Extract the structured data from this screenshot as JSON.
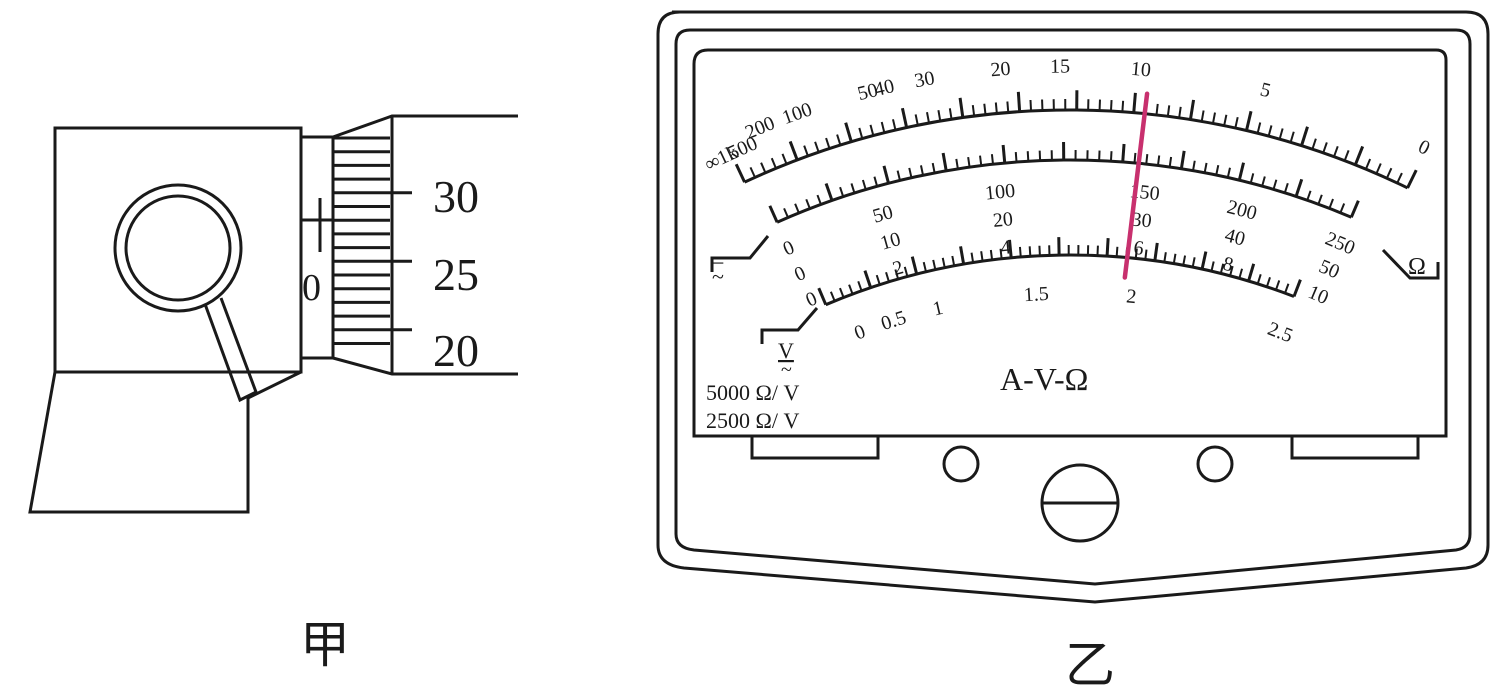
{
  "figure_labels": {
    "left": "甲",
    "right": "乙"
  },
  "micrometer": {
    "sleeve_label": "0",
    "thimble_labels": [
      "30",
      "25",
      "20"
    ]
  },
  "meter": {
    "title": "A-V-Ω",
    "ohm_unit": "Ω",
    "dc_symbol": "=",
    "ac_symbol": "~",
    "volt_unit": "V",
    "sensitivity": [
      "5000  Ω/ V",
      "2500  Ω/ V"
    ],
    "ohm_scale": [
      "∞",
      "1k",
      "500",
      "200",
      "100",
      "50",
      "40",
      "30",
      "20",
      "15",
      "10",
      "5",
      "0"
    ],
    "dc_scale_250": [
      "0",
      "50",
      "100",
      "150",
      "200",
      "250"
    ],
    "dc_scale_50": [
      "0",
      "10",
      "20",
      "30",
      "40",
      "50"
    ],
    "dc_scale_10": [
      "0",
      "2",
      "4",
      "6",
      "8",
      "10"
    ],
    "ac_scale": [
      "0",
      "0.5",
      "1",
      "1.5",
      "2",
      "2.5"
    ],
    "pointer_color": "#c8306e"
  }
}
